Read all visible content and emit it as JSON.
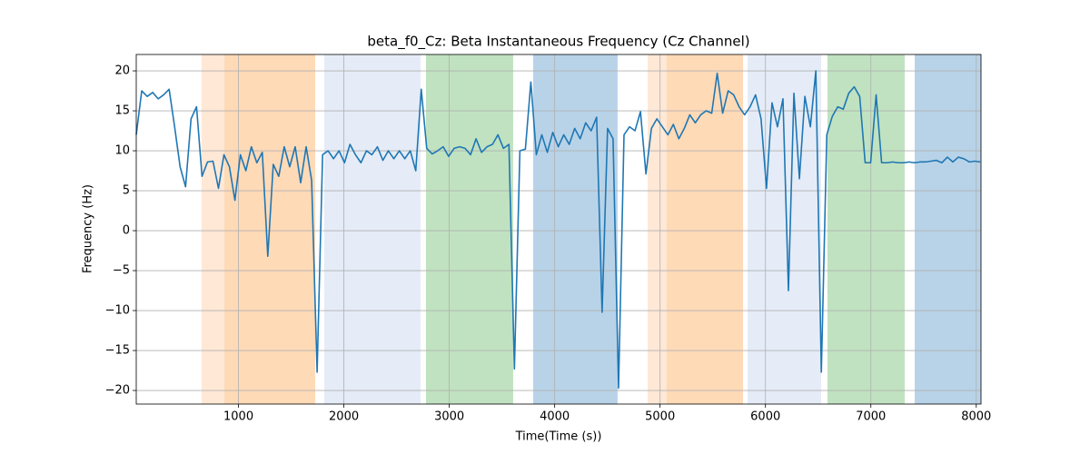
{
  "chart_data": {
    "type": "line",
    "title": "beta_f0_Cz: Beta Instantaneous Frequency (Cz Channel)",
    "xlabel": "Time(Time (s))",
    "ylabel": "Frequency (Hz)",
    "xlim": [
      30,
      8045
    ],
    "ylim": [
      -21.7,
      22.05
    ],
    "xticks": [
      1000,
      2000,
      3000,
      4000,
      5000,
      6000,
      7000,
      8000
    ],
    "yticks": [
      {
        "value": -20,
        "label": "−20"
      },
      {
        "value": -15,
        "label": "−15"
      },
      {
        "value": -10,
        "label": "−10"
      },
      {
        "value": -5,
        "label": "−5"
      },
      0,
      5,
      10,
      15,
      20
    ],
    "grid": true,
    "spans": [
      {
        "x0": 650,
        "x1": 866,
        "color": "#ffe8d6"
      },
      {
        "x0": 866,
        "x1": 1728,
        "color": "#ffdab7"
      },
      {
        "x0": 1814,
        "x1": 2727,
        "color": "#e5ecf7"
      },
      {
        "x0": 2779,
        "x1": 3606,
        "color": "#c0e2c0"
      },
      {
        "x0": 3796,
        "x1": 4597,
        "color": "#b8d3e8"
      },
      {
        "x0": 4882,
        "x1": 5063,
        "color": "#ffe8d6"
      },
      {
        "x0": 5063,
        "x1": 5787,
        "color": "#ffdab7"
      },
      {
        "x0": 5830,
        "x1": 6528,
        "color": "#e5ecf7"
      },
      {
        "x0": 6588,
        "x1": 7321,
        "color": "#c0e2c0"
      },
      {
        "x0": 7416,
        "x1": 8045,
        "color": "#b8d3e8"
      }
    ],
    "x": [
      30,
      82,
      134,
      186,
      238,
      290,
      342,
      394,
      446,
      498,
      550,
      602,
      654,
      706,
      758,
      810,
      862,
      914,
      966,
      1018,
      1070,
      1122,
      1174,
      1226,
      1278,
      1330,
      1382,
      1434,
      1486,
      1538,
      1590,
      1642,
      1694,
      1746,
      1798,
      1850,
      1902,
      1954,
      2006,
      2058,
      2110,
      2162,
      2214,
      2266,
      2318,
      2370,
      2422,
      2474,
      2526,
      2578,
      2630,
      2682,
      2734,
      2786,
      2838,
      2890,
      2942,
      2994,
      3046,
      3098,
      3150,
      3202,
      3254,
      3306,
      3358,
      3410,
      3462,
      3514,
      3566,
      3618,
      3670,
      3722,
      3774,
      3826,
      3878,
      3930,
      3982,
      4034,
      4086,
      4138,
      4190,
      4242,
      4294,
      4346,
      4398,
      4450,
      4502,
      4554,
      4606,
      4658,
      4710,
      4762,
      4814,
      4866,
      4918,
      4970,
      5022,
      5074,
      5126,
      5178,
      5230,
      5282,
      5334,
      5386,
      5438,
      5490,
      5542,
      5594,
      5646,
      5698,
      5750,
      5802,
      5854,
      5906,
      5958,
      6010,
      6062,
      6114,
      6166,
      6218,
      6270,
      6322,
      6374,
      6426,
      6478,
      6530,
      6582,
      6634,
      6686,
      6738,
      6790,
      6842,
      6894,
      6946,
      6998,
      7050,
      7102,
      7154,
      7206,
      7258,
      7310,
      7362,
      7414,
      7466,
      7518,
      7570,
      7622,
      7674,
      7726,
      7778,
      7830,
      7882,
      7934,
      7986,
      8038
    ],
    "series": [
      {
        "color": "#1f77b4",
        "values": [
          12,
          17.5,
          16.8,
          17.3,
          16.5,
          17,
          17.7,
          13,
          8,
          5.5,
          14,
          15.5,
          6.8,
          8.6,
          8.7,
          5.3,
          9.5,
          8,
          3.8,
          9.5,
          7.5,
          10.5,
          8.5,
          9.8,
          -3.2,
          8.3,
          6.8,
          10.5,
          8,
          10.5,
          6,
          10.5,
          6.3,
          -17.7,
          9.5,
          10,
          9,
          10,
          8.5,
          10.8,
          9.5,
          8.5,
          10,
          9.5,
          10.5,
          8.8,
          10,
          9,
          10,
          9,
          10,
          7.5,
          17.7,
          10.3,
          9.6,
          10,
          10.5,
          9.3,
          10.3,
          10.5,
          10.3,
          9.5,
          11.5,
          9.8,
          10.5,
          10.8,
          12,
          10.3,
          10.8,
          -17.3,
          10,
          10.2,
          18.6,
          9.5,
          12,
          9.8,
          12.3,
          10.5,
          12,
          10.8,
          12.8,
          11.5,
          13.5,
          12.5,
          14.2,
          -10.2,
          12.8,
          11.5,
          -19.7,
          12,
          13,
          12.5,
          14.9,
          7.1,
          12.8,
          14,
          13,
          12,
          13.3,
          11.5,
          12.8,
          14.5,
          13.5,
          14.5,
          15,
          14.7,
          19.7,
          14.7,
          17.5,
          17,
          15.5,
          14.5,
          15.5,
          17,
          14,
          5.3,
          16,
          13,
          16.5,
          -7.5,
          17.2,
          6.5,
          16.8,
          13,
          20,
          -17.7,
          12,
          14.3,
          15.5,
          15.2,
          17.2,
          18,
          16.8,
          8.5,
          8.5,
          17,
          8.5,
          8.5,
          8.6,
          8.5,
          8.5,
          8.6,
          8.5,
          8.6,
          8.6,
          8.7,
          8.8,
          8.5,
          9.2,
          8.6,
          9.2,
          9,
          8.6,
          8.7,
          8.6
        ]
      }
    ]
  }
}
